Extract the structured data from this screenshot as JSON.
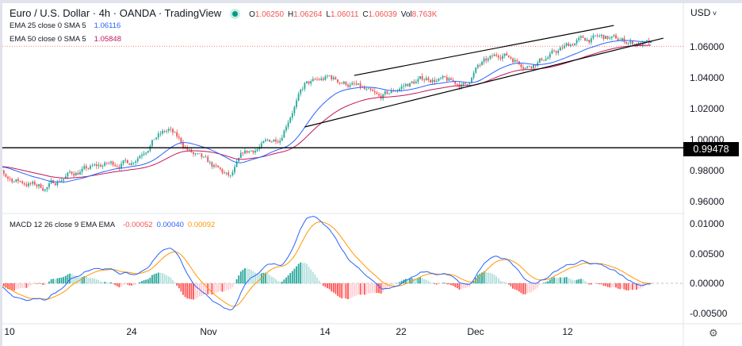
{
  "header": {
    "title": "Euro / U.S. Dollar · 4h · OANDA · TradingView",
    "status_color": "#089981",
    "ohlc": {
      "o_label": "O",
      "o": "1.06250",
      "h_label": "H",
      "h": "1.06264",
      "l_label": "L",
      "l": "1.06011",
      "c_label": "C",
      "c": "1.06039",
      "vol_label": "Vol",
      "vol": "8.763K"
    }
  },
  "indicators": [
    {
      "label": "EMA 25 close 0 SMA 5",
      "value": "1.06116",
      "color": "#2962ff"
    },
    {
      "label": "EMA 50 close 0 SMA 5",
      "value": "1.05848",
      "color": "#c2185b"
    }
  ],
  "macd": {
    "label": "MACD 12 26 close 9 EMA EMA",
    "hist": "-0.00052",
    "macd": "0.00040",
    "signal": "0.00092",
    "hist_color": "#ef5350",
    "macd_color": "#2962ff",
    "signal_color": "#ff9800"
  },
  "price_axis": {
    "currency": "USD",
    "ticks": [
      "1.06000",
      "1.04000",
      "1.02000",
      "1.00000",
      "0.98000",
      "0.96000"
    ],
    "marker": "0.99478"
  },
  "macd_axis": {
    "ticks": [
      "0.01000",
      "0.00500",
      "0.00000",
      "-0.00500"
    ]
  },
  "time_axis": [
    "10",
    "24",
    "Nov",
    "14",
    "22",
    "Dec",
    "12"
  ],
  "settings_icon": "gear-icon",
  "chart_data": {
    "type": "candlestick",
    "symbol": "EURUSD",
    "interval": "4h",
    "ylim": [
      0.955,
      1.075
    ],
    "macd_ylim": [
      -0.0065,
      0.0105
    ],
    "colors": {
      "up": "#26a69a",
      "down": "#ef5350",
      "ema25": "#2962ff",
      "ema50": "#c2185b"
    },
    "approx_close_path": [
      [
        "2022-10-06",
        0.985
      ],
      [
        "2022-10-10",
        0.975
      ],
      [
        "2022-10-13",
        0.969
      ],
      [
        "2022-10-17",
        0.978
      ],
      [
        "2022-10-20",
        0.984
      ],
      [
        "2022-10-24",
        0.986
      ],
      [
        "2022-10-26",
        1.002
      ],
      [
        "2022-10-27",
        1.006
      ],
      [
        "2022-10-31",
        0.99
      ],
      [
        "2022-11-03",
        0.975
      ],
      [
        "2022-11-04",
        0.99
      ],
      [
        "2022-11-09",
        1.002
      ],
      [
        "2022-11-10",
        1.02
      ],
      [
        "2022-11-11",
        1.035
      ],
      [
        "2022-11-15",
        1.04
      ],
      [
        "2022-11-17",
        1.035
      ],
      [
        "2022-11-21",
        1.026
      ],
      [
        "2022-11-23",
        1.035
      ],
      [
        "2022-11-25",
        1.04
      ],
      [
        "2022-11-30",
        1.035
      ],
      [
        "2022-12-01",
        1.047
      ],
      [
        "2022-12-05",
        1.056
      ],
      [
        "2022-12-07",
        1.048
      ],
      [
        "2022-12-09",
        1.055
      ],
      [
        "2022-12-13",
        1.064
      ],
      [
        "2022-12-15",
        1.066
      ],
      [
        "2022-12-21",
        1.061
      ]
    ],
    "horizontal_line": 0.99478,
    "trendlines": [
      {
        "name": "channel-upper",
        "from": [
          "2022-11-17",
          1.0415
        ],
        "to": [
          "2022-12-16",
          1.0738
        ]
      },
      {
        "name": "channel-lower",
        "from": [
          "2022-11-11",
          1.0082
        ],
        "to": [
          "2022-12-22",
          1.0656
        ]
      }
    ]
  }
}
